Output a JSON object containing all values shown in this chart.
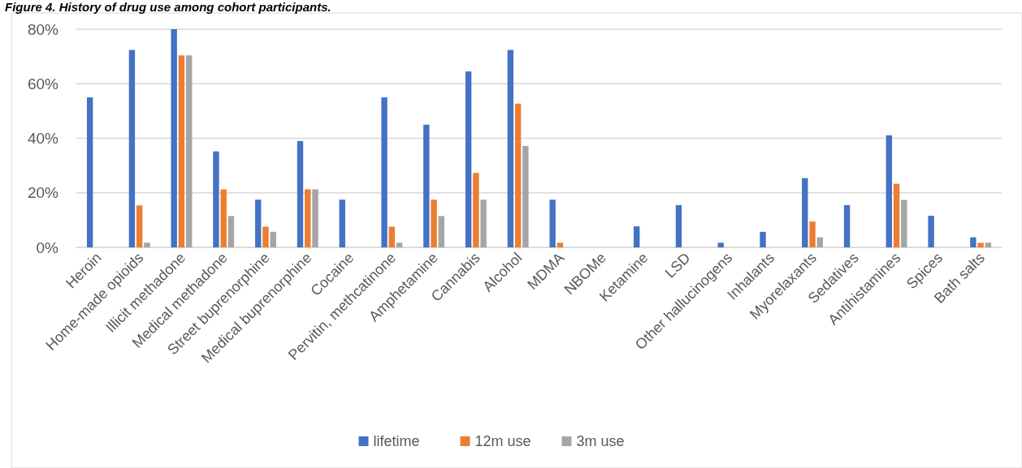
{
  "chart_data": {
    "type": "bar",
    "title": "Figure 4. History of drug use among cohort participants.",
    "categories": [
      "Heroin",
      "Home-made opioids",
      "Illicit methadone",
      "Medical methadone",
      "Street buprenorphine",
      "Medical buprenorphine",
      "Cocaine",
      "Pervitin, methcatinone",
      "Amphetamine",
      "Cannabis",
      "Alcohol",
      "MDMA",
      "NBOMe",
      "Ketamine",
      "LSD",
      "Other hallucinogens",
      "Inhalants",
      "Myorelaxants",
      "Sedatives",
      "Antihistamines",
      "Spices",
      "Bath salts"
    ],
    "series": [
      {
        "name": "lifetime",
        "color": "#4472c4",
        "values": [
          55,
          72.4,
          80,
          35.2,
          17.5,
          39,
          17.5,
          55,
          45,
          64.5,
          72.4,
          17.5,
          0,
          7.7,
          15.5,
          1.7,
          5.7,
          25.4,
          15.5,
          41.1,
          11.6,
          3.7
        ]
      },
      {
        "name": "12m use",
        "color": "#ed7d31",
        "values": [
          0,
          15.4,
          70.4,
          21.3,
          7.6,
          21.3,
          0,
          7.6,
          17.5,
          27.3,
          52.7,
          1.7,
          0,
          0,
          0,
          0,
          0,
          9.5,
          0,
          23.3,
          0,
          1.7
        ]
      },
      {
        "name": "3m use",
        "color": "#a5a5a5",
        "values": [
          0,
          1.7,
          70.4,
          11.5,
          5.7,
          21.3,
          0,
          1.7,
          11.5,
          17.5,
          37.2,
          0,
          0,
          0,
          0,
          0,
          0,
          3.7,
          0,
          17.4,
          0,
          1.7
        ]
      }
    ],
    "ylim": [
      0,
      80
    ],
    "yticks": [
      {
        "value": 0,
        "label": "0%"
      },
      {
        "value": 20,
        "label": "20%"
      },
      {
        "value": 40,
        "label": "40%"
      },
      {
        "value": 60,
        "label": "60%"
      },
      {
        "value": 80,
        "label": "80%"
      }
    ],
    "grid": "y",
    "legend": "bottom"
  }
}
